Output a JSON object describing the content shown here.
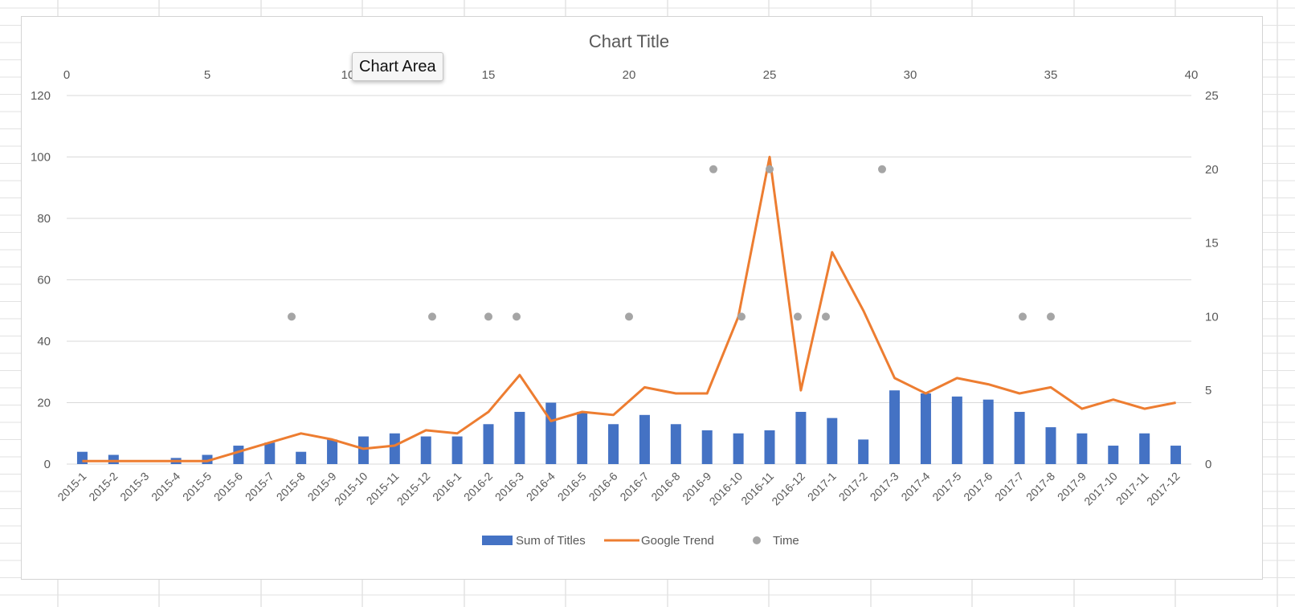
{
  "tooltip": {
    "label": "Chart Area"
  },
  "colors": {
    "bar": "#4472C4",
    "line": "#ED7D31",
    "scatter": "#A5A5A5",
    "gridline": "#D9D9D9",
    "text": "#595959"
  },
  "chart_data": {
    "type": "bar",
    "title": "Chart Title",
    "categories": [
      "2015-1",
      "2015-2",
      "2015-3",
      "2015-4",
      "2015-5",
      "2015-6",
      "2015-7",
      "2015-8",
      "2015-9",
      "2015-10",
      "2015-11",
      "2015-12",
      "2016-1",
      "2016-2",
      "2016-3",
      "2016-4",
      "2016-5",
      "2016-6",
      "2016-7",
      "2016-8",
      "2016-9",
      "2016-10",
      "2016-11",
      "2016-12",
      "2017-1",
      "2017-2",
      "2017-3",
      "2017-4",
      "2017-5",
      "2017-6",
      "2017-7",
      "2017-8",
      "2017-9",
      "2017-10",
      "2017-11",
      "2017-12"
    ],
    "ylim": [
      0,
      120
    ],
    "yticks": [
      0,
      20,
      40,
      60,
      80,
      100,
      120
    ],
    "y2lim": [
      0,
      25
    ],
    "y2ticks": [
      0,
      5,
      10,
      15,
      20,
      25
    ],
    "x2lim": [
      0,
      40
    ],
    "x2ticks": [
      0,
      5,
      10,
      15,
      20,
      25,
      30,
      35,
      40
    ],
    "grid": true,
    "legend_position": "bottom",
    "series": [
      {
        "name": "Sum of Titles",
        "type": "bar",
        "axis": "primary",
        "values": [
          4,
          3,
          0,
          2,
          3,
          6,
          7,
          4,
          8,
          9,
          10,
          9,
          9,
          13,
          17,
          20,
          17,
          13,
          16,
          13,
          11,
          10,
          11,
          17,
          15,
          8,
          24,
          23,
          22,
          21,
          17,
          12,
          10,
          6,
          10,
          6
        ]
      },
      {
        "name": "Google Trend",
        "type": "line",
        "axis": "primary",
        "values": [
          1,
          1,
          1,
          1,
          1,
          4,
          7,
          10,
          8,
          5,
          6,
          11,
          10,
          17,
          29,
          14,
          17,
          16,
          25,
          23,
          23,
          48,
          100,
          24,
          69,
          50,
          28,
          23,
          28,
          26,
          23,
          25,
          18,
          21,
          18,
          20
        ]
      },
      {
        "name": "Time",
        "type": "scatter",
        "axis": "secondary",
        "points": [
          {
            "x": 8,
            "y": 10
          },
          {
            "x": 13,
            "y": 10
          },
          {
            "x": 15,
            "y": 10
          },
          {
            "x": 16,
            "y": 10
          },
          {
            "x": 20,
            "y": 10
          },
          {
            "x": 23,
            "y": 20
          },
          {
            "x": 24,
            "y": 10
          },
          {
            "x": 25,
            "y": 20
          },
          {
            "x": 26,
            "y": 10
          },
          {
            "x": 27,
            "y": 10
          },
          {
            "x": 29,
            "y": 20
          },
          {
            "x": 34,
            "y": 10
          },
          {
            "x": 35,
            "y": 10
          }
        ]
      }
    ]
  }
}
